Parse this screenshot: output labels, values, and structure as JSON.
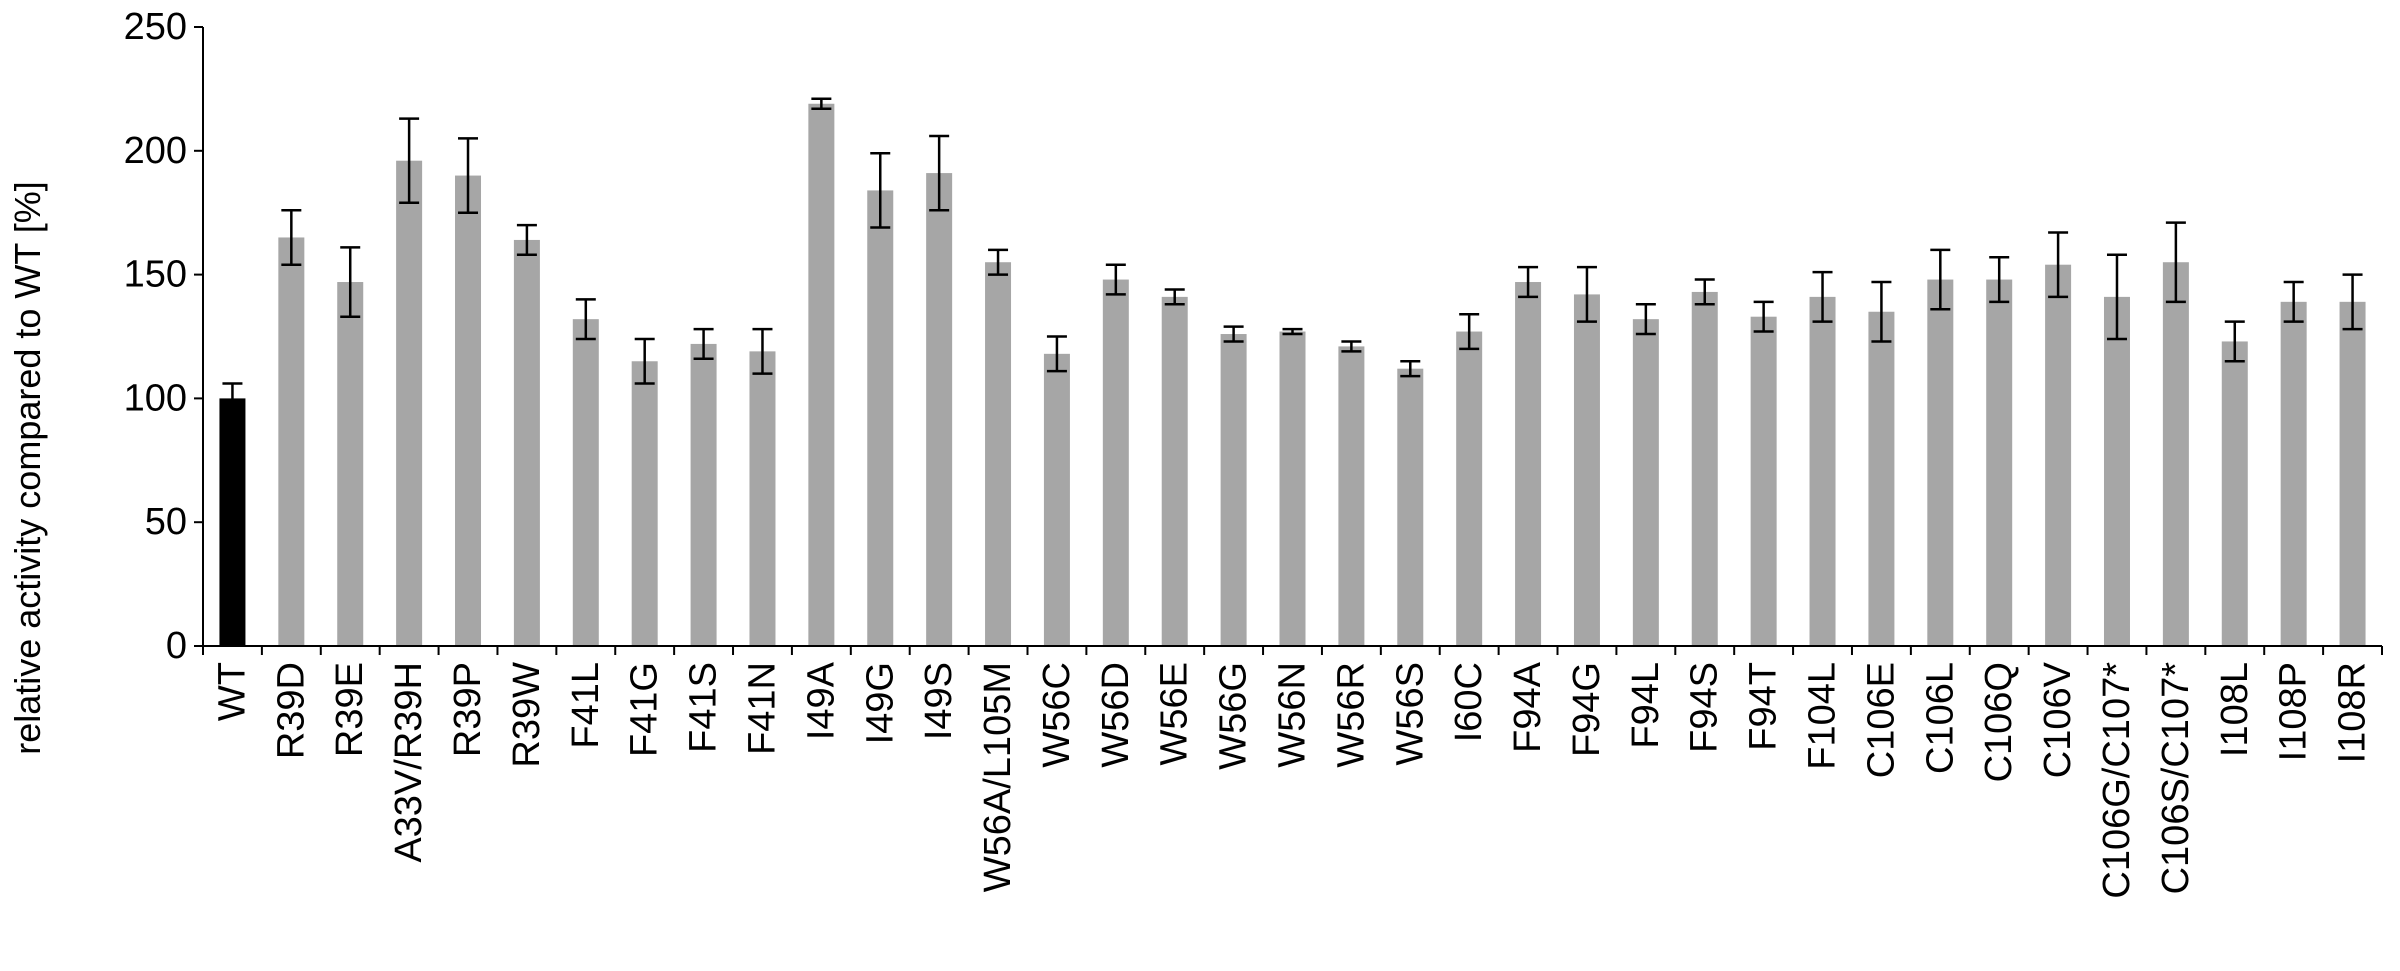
{
  "chart_data": {
    "type": "bar",
    "title": "",
    "xlabel": "",
    "ylabel": "relative  activity compared to WT [%]",
    "ylim": [
      0,
      250
    ],
    "yticks": [
      0,
      50,
      100,
      150,
      200,
      250
    ],
    "grid": false,
    "legend": "none",
    "categories": [
      "WT",
      "R39D",
      "R39E",
      "A33V/R39H",
      "R39P",
      "R39W",
      "F41L",
      "F41G",
      "F41S",
      "F41N",
      "I49A",
      "I49G",
      "I49S",
      "W56A/L105M",
      "W56C",
      "W56D",
      "W56E",
      "W56G",
      "W56N",
      "W56R",
      "W56S",
      "I60C",
      "F94A",
      "F94G",
      "F94L",
      "F94S",
      "F94T",
      "F104L",
      "C106E",
      "C106L",
      "C106Q",
      "C106V",
      "C106G/C107*",
      "C106S/C107*",
      "I108L",
      "I108P",
      "I108R"
    ],
    "values": [
      100,
      165,
      147,
      196,
      190,
      164,
      132,
      115,
      122,
      119,
      219,
      184,
      191,
      155,
      118,
      148,
      141,
      126,
      127,
      121,
      112,
      127,
      147,
      142,
      132,
      143,
      133,
      141,
      135,
      148,
      148,
      154,
      141,
      155,
      123,
      139,
      139
    ],
    "errors": [
      6,
      11,
      14,
      17,
      15,
      6,
      8,
      9,
      6,
      9,
      2,
      15,
      15,
      5,
      7,
      6,
      3,
      3,
      1,
      2,
      3,
      7,
      6,
      11,
      6,
      5,
      6,
      10,
      12,
      12,
      9,
      13,
      17,
      16,
      8,
      8,
      11
    ],
    "colors": {
      "reference": "#000000",
      "mutant": "#a6a6a6",
      "axis": "#000000"
    }
  }
}
